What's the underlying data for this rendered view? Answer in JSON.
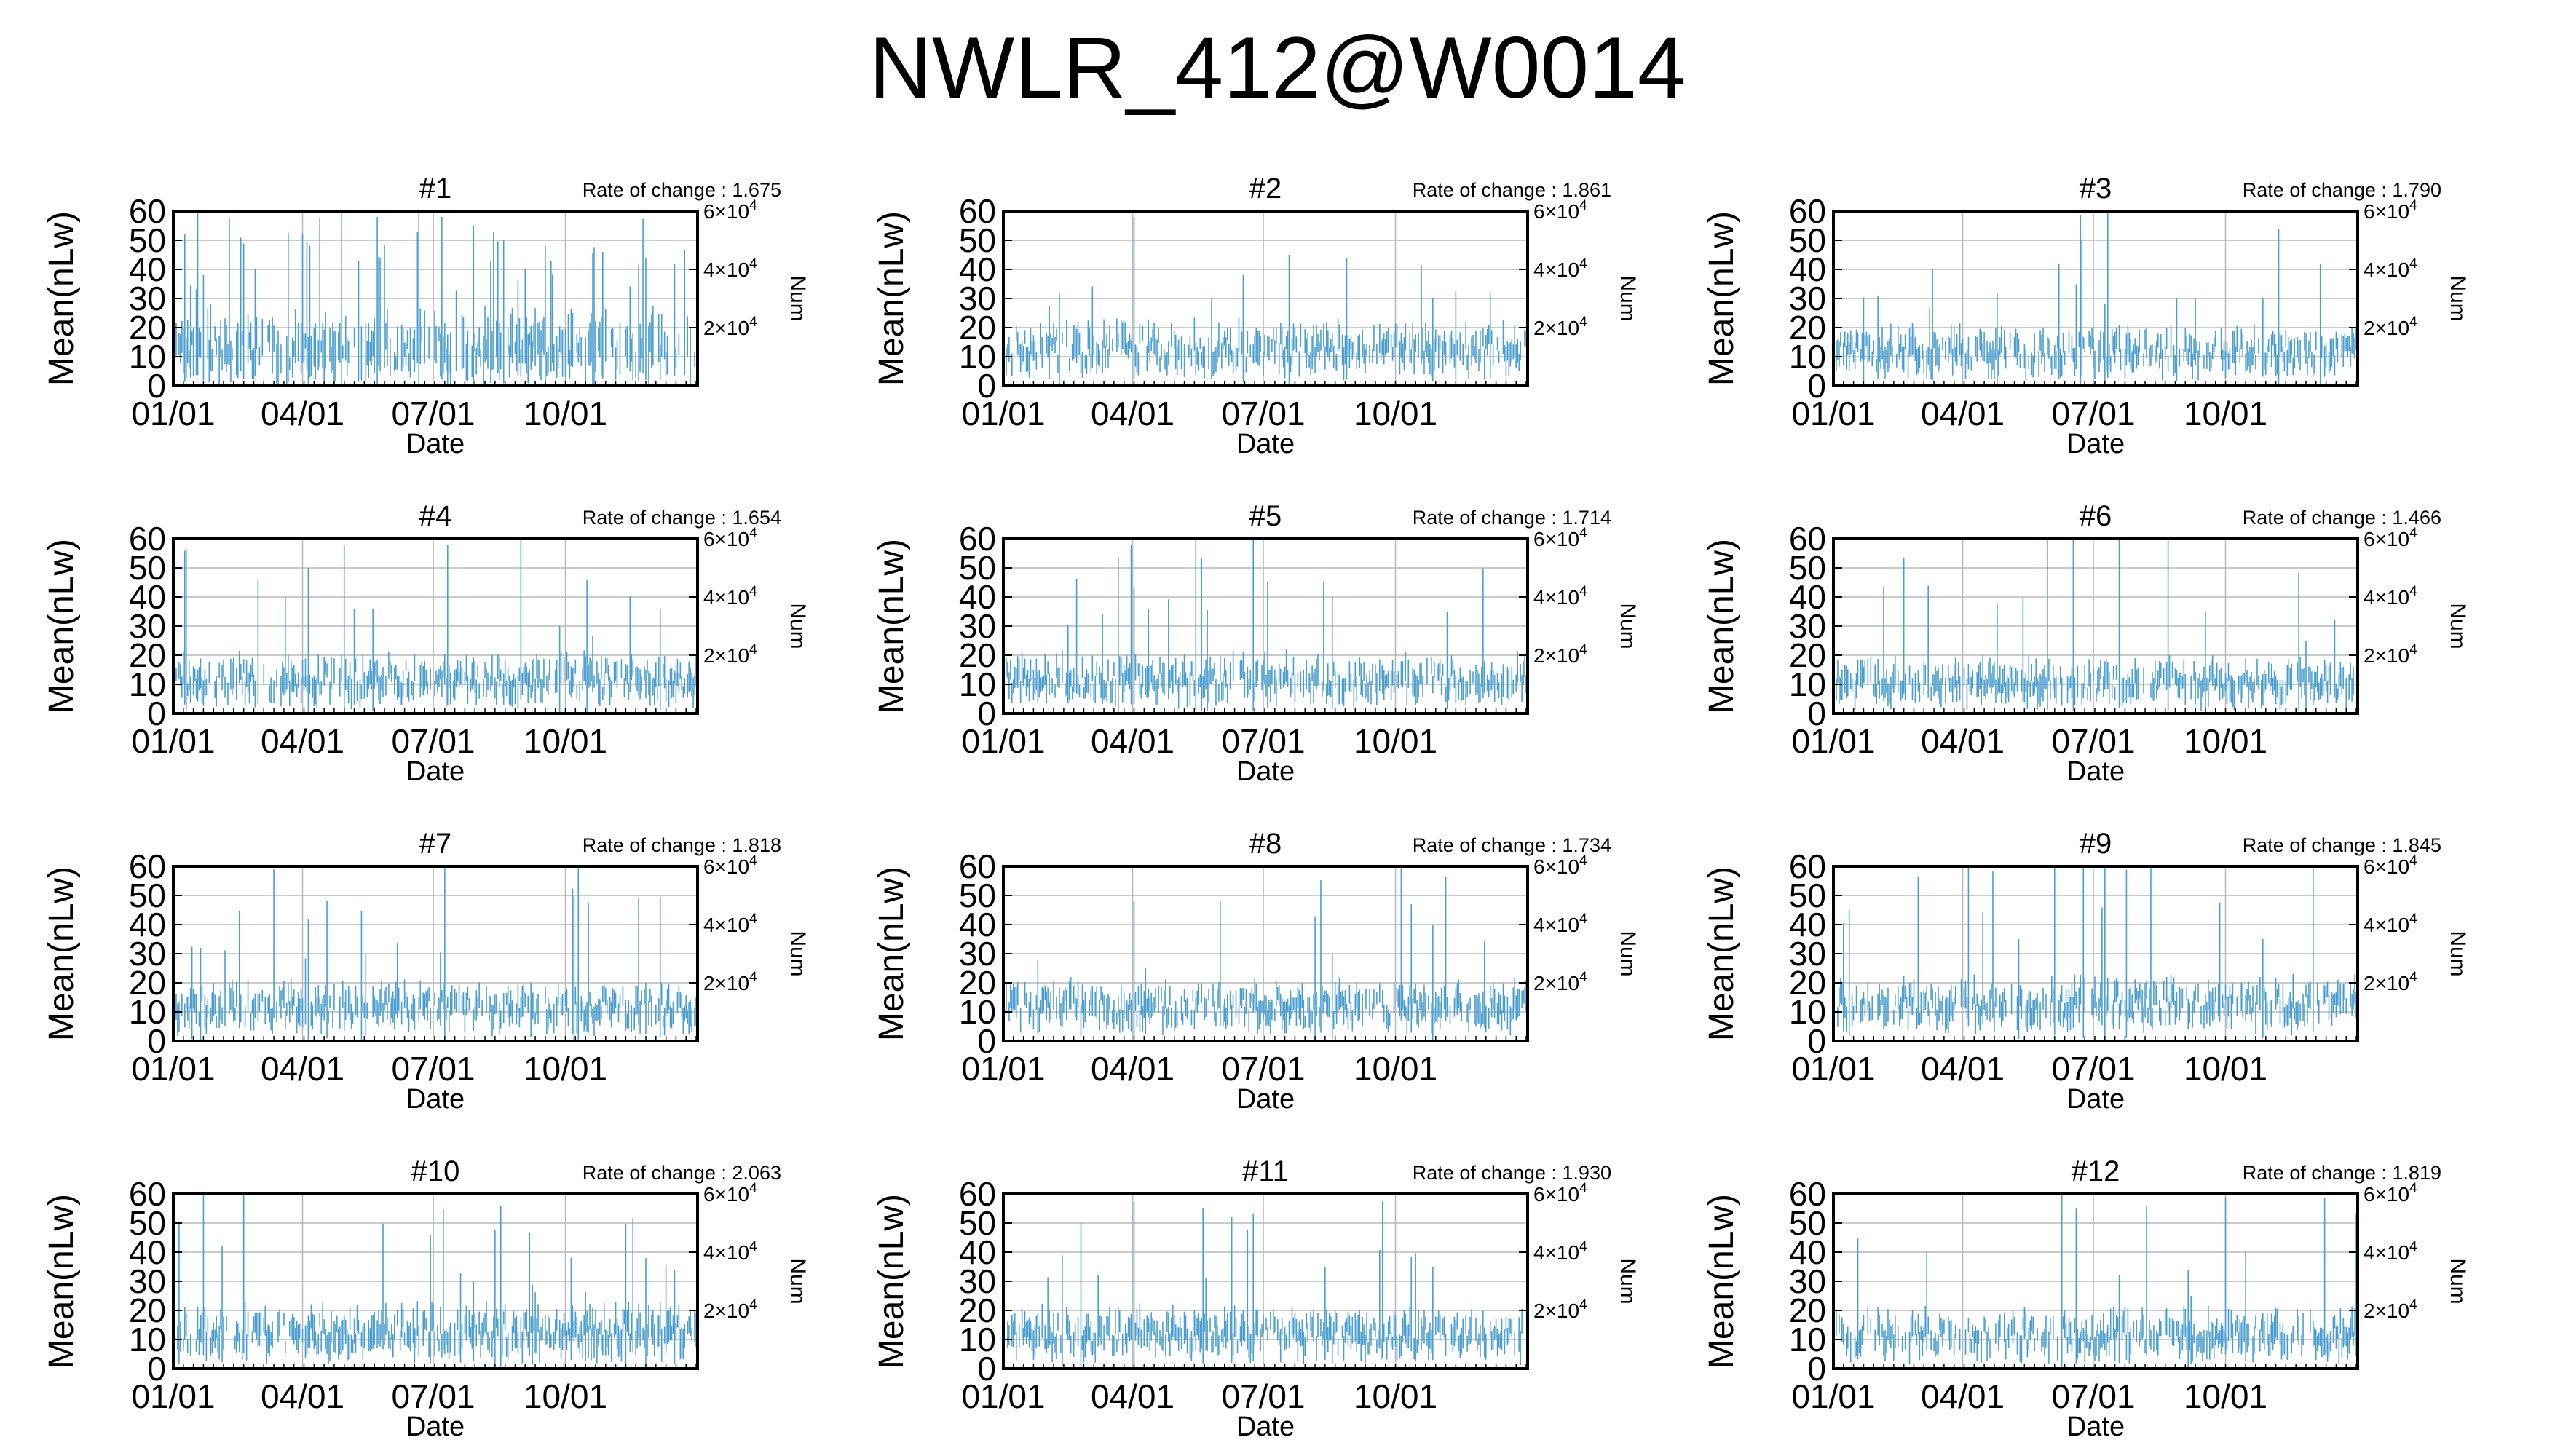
{
  "title": "NWLR_412@W0014",
  "style": {
    "bar_color": "#4a9fd0",
    "grid_color": "#b8b8b8",
    "axis_color": "#000000"
  },
  "shared_axes": {
    "xlabel": "Date",
    "ylabel": "Mean(nLw)",
    "y2label": "Num",
    "ylim": [
      0,
      60
    ],
    "yticks": [
      "0",
      "10",
      "20",
      "30",
      "40",
      "50",
      "60"
    ],
    "xlim": [
      1,
      366
    ],
    "xticks": [
      {
        "label": "01/01",
        "day": 1
      },
      {
        "label": "04/01",
        "day": 91
      },
      {
        "label": "07/01",
        "day": 182
      },
      {
        "label": "10/01",
        "day": 274
      }
    ],
    "y2ticks": [
      {
        "base": "2×10",
        "exp": "4",
        "value": 20000
      },
      {
        "base": "4×10",
        "exp": "4",
        "value": 40000
      },
      {
        "base": "6×10",
        "exp": "4",
        "value": 60000
      }
    ],
    "y2lim": [
      0,
      60000
    ],
    "rate_label": "Rate of change : "
  },
  "chart_data": [
    {
      "type": "bar",
      "title": "#1",
      "rate": "1.675",
      "mean_level": 12,
      "spread": 1.0,
      "spike_count": 46,
      "spikes": [
        [
          22,
          38
        ],
        [
          58,
          40
        ],
        [
          96,
          48
        ],
        [
          118,
          60
        ],
        [
          143,
          58
        ],
        [
          172,
          60
        ],
        [
          188,
          58
        ],
        [
          210,
          55
        ],
        [
          231,
          50
        ],
        [
          260,
          48
        ],
        [
          300,
          46
        ],
        [
          330,
          44
        ],
        [
          350,
          42
        ]
      ]
    },
    {
      "type": "bar",
      "title": "#2",
      "rate": "1.861",
      "mean_level": 12,
      "spread": 0.5,
      "spike_count": 14,
      "spikes": [
        [
          92,
          58
        ],
        [
          146,
          30
        ],
        [
          168,
          38
        ],
        [
          200,
          45
        ],
        [
          240,
          44
        ],
        [
          300,
          30
        ],
        [
          340,
          32
        ]
      ]
    },
    {
      "type": "bar",
      "title": "#3",
      "rate": "1.790",
      "mean_level": 11,
      "spread": 0.45,
      "spike_count": 12,
      "spikes": [
        [
          70,
          40
        ],
        [
          115,
          32
        ],
        [
          158,
          42
        ],
        [
          192,
          60
        ],
        [
          240,
          30
        ],
        [
          300,
          30
        ],
        [
          340,
          42
        ]
      ]
    },
    {
      "type": "bar",
      "title": "#4",
      "rate": "1.654",
      "mean_level": 11,
      "spread": 0.45,
      "spike_count": 14,
      "spikes": [
        [
          60,
          46
        ],
        [
          95,
          50
        ],
        [
          120,
          58
        ],
        [
          140,
          36
        ],
        [
          192,
          58
        ],
        [
          270,
          30
        ],
        [
          340,
          36
        ]
      ]
    },
    {
      "type": "bar",
      "title": "#5",
      "rate": "1.714",
      "mean_level": 11,
      "spread": 0.45,
      "spike_count": 14,
      "spikes": [
        [
          70,
          34
        ],
        [
          90,
          58
        ],
        [
          135,
          60
        ],
        [
          175,
          60
        ],
        [
          185,
          45
        ],
        [
          230,
          40
        ],
        [
          310,
          35
        ]
      ]
    },
    {
      "type": "bar",
      "title": "#6",
      "rate": "1.466",
      "mean_level": 10,
      "spread": 0.45,
      "spike_count": 10,
      "spikes": [
        [
          150,
          60
        ],
        [
          168,
          60
        ],
        [
          200,
          60
        ],
        [
          260,
          35
        ],
        [
          330,
          25
        ]
      ]
    },
    {
      "type": "bar",
      "title": "#7",
      "rate": "1.818",
      "mean_level": 11,
      "spread": 0.45,
      "spike_count": 12,
      "spikes": [
        [
          20,
          32
        ],
        [
          95,
          42
        ],
        [
          108,
          48
        ],
        [
          135,
          30
        ],
        [
          190,
          60
        ],
        [
          250,
          20
        ],
        [
          330,
          20
        ]
      ]
    },
    {
      "type": "bar",
      "title": "#8",
      "rate": "1.734",
      "mean_level": 11,
      "spread": 0.45,
      "spike_count": 10,
      "spikes": [
        [
          25,
          28
        ],
        [
          100,
          25
        ],
        [
          230,
          30
        ],
        [
          285,
          47
        ],
        [
          300,
          40
        ]
      ]
    },
    {
      "type": "bar",
      "title": "#9",
      "rate": "1.845",
      "mean_level": 12,
      "spread": 0.5,
      "spike_count": 16,
      "spikes": [
        [
          12,
          45
        ],
        [
          130,
          35
        ],
        [
          155,
          60
        ],
        [
          175,
          60
        ],
        [
          190,
          60
        ],
        [
          300,
          35
        ],
        [
          335,
          60
        ]
      ]
    },
    {
      "type": "bar",
      "title": "#10",
      "rate": "2.063",
      "mean_level": 12,
      "spread": 0.5,
      "spike_count": 14,
      "spikes": [
        [
          5,
          50
        ],
        [
          35,
          42
        ],
        [
          180,
          46
        ],
        [
          210,
          30
        ],
        [
          330,
          38
        ],
        [
          350,
          34
        ]
      ]
    },
    {
      "type": "bar",
      "title": "#11",
      "rate": "1.930",
      "mean_level": 11,
      "spread": 0.5,
      "spike_count": 14,
      "spikes": [
        [
          55,
          50
        ],
        [
          140,
          55
        ],
        [
          160,
          52
        ],
        [
          175,
          53
        ],
        [
          225,
          35
        ],
        [
          300,
          35
        ]
      ]
    },
    {
      "type": "bar",
      "title": "#12",
      "rate": "1.819",
      "mean_level": 11,
      "spread": 0.45,
      "spike_count": 10,
      "spikes": [
        [
          18,
          45
        ],
        [
          160,
          60
        ],
        [
          170,
          55
        ],
        [
          200,
          32
        ],
        [
          250,
          25
        ]
      ]
    }
  ]
}
